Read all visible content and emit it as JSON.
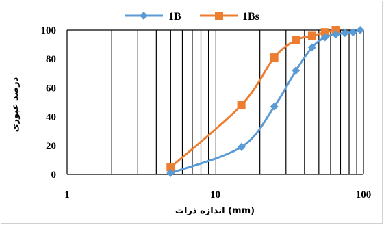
{
  "chart_data": {
    "type": "line",
    "xscale": "log",
    "xlim": [
      1,
      100
    ],
    "ylim": [
      0,
      100
    ],
    "xticks": [
      1,
      10,
      100
    ],
    "yticks": [
      0,
      20,
      40,
      60,
      80,
      100
    ],
    "xlabel": "اندازه ذرات  (mm)",
    "ylabel": "درصد عبوری",
    "grid": "vertical log gridlines",
    "legend_position": "top",
    "series": [
      {
        "name": "1B",
        "color": "#5b9bd5",
        "marker": "diamond",
        "points": [
          [
            5,
            1
          ],
          [
            15,
            19
          ],
          [
            25,
            47
          ],
          [
            35,
            72
          ],
          [
            45,
            88
          ],
          [
            55,
            95
          ],
          [
            65,
            97
          ],
          [
            75,
            98
          ],
          [
            85,
            98.5
          ],
          [
            95,
            100
          ]
        ]
      },
      {
        "name": "1Bs",
        "color": "#ed7d31",
        "marker": "square",
        "points": [
          [
            5,
            5
          ],
          [
            15,
            48
          ],
          [
            25,
            81
          ],
          [
            35,
            93
          ],
          [
            45,
            96
          ],
          [
            55,
            98.5
          ],
          [
            65,
            100
          ]
        ]
      }
    ]
  }
}
